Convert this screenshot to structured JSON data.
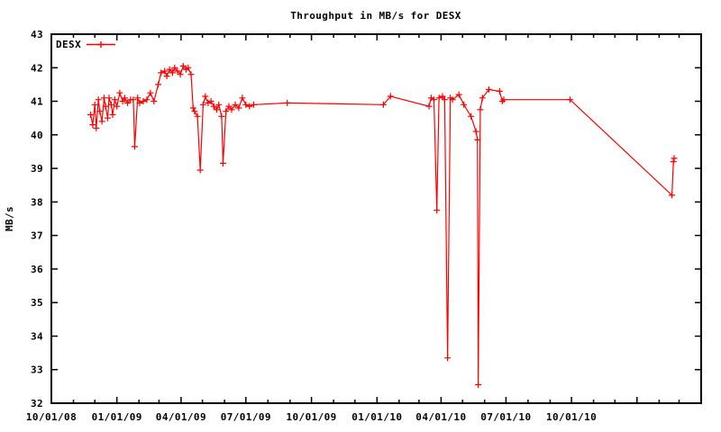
{
  "title": "Throughput in MB/s for DESX",
  "legend": {
    "label": "DESX",
    "position": "top-left-inside"
  },
  "colors": {
    "series": "#ff0000",
    "axis": "#000000",
    "background": "#ffffff"
  },
  "chart_data": {
    "type": "line",
    "marker": "plus",
    "title": "Throughput in MB/s for DESX",
    "xlabel": "",
    "ylabel": "MB/s",
    "grid": false,
    "legend_position": "top-left inside",
    "x_axis": {
      "min": "2008-10-01",
      "max": "2011-04-01",
      "minor_tick_interval_months": 1,
      "major_ticks": [
        {
          "date": "2008-10-01",
          "label": "10/01/08"
        },
        {
          "date": "2009-01-01",
          "label": "01/01/09"
        },
        {
          "date": "2009-04-01",
          "label": "04/01/09"
        },
        {
          "date": "2009-07-01",
          "label": "07/01/09"
        },
        {
          "date": "2009-10-01",
          "label": "10/01/09"
        },
        {
          "date": "2010-01-01",
          "label": "01/01/10"
        },
        {
          "date": "2010-04-01",
          "label": "04/01/10"
        },
        {
          "date": "2010-07-01",
          "label": "07/01/10"
        },
        {
          "date": "2010-10-01",
          "label": "10/01/10"
        },
        {
          "date": "2011-01-01",
          "label": ""
        }
      ]
    },
    "y_axis": {
      "min": 32,
      "max": 43,
      "tick_step": 1,
      "ticks": [
        32,
        33,
        34,
        35,
        36,
        37,
        38,
        39,
        40,
        41,
        42,
        43
      ]
    },
    "series": [
      {
        "name": "DESX",
        "color": "#ff0000",
        "points": [
          [
            "2008-11-25",
            40.6
          ],
          [
            "2008-11-28",
            40.3
          ],
          [
            "2008-12-01",
            40.9
          ],
          [
            "2008-12-03",
            40.2
          ],
          [
            "2008-12-06",
            41.05
          ],
          [
            "2008-12-08",
            40.7
          ],
          [
            "2008-12-11",
            40.4
          ],
          [
            "2008-12-14",
            41.1
          ],
          [
            "2008-12-16",
            40.85
          ],
          [
            "2008-12-19",
            40.5
          ],
          [
            "2008-12-21",
            41.1
          ],
          [
            "2008-12-24",
            40.9
          ],
          [
            "2008-12-26",
            40.6
          ],
          [
            "2008-12-29",
            41.05
          ],
          [
            "2009-01-01",
            40.85
          ],
          [
            "2009-01-05",
            41.25
          ],
          [
            "2009-01-09",
            41.0
          ],
          [
            "2009-01-12",
            41.1
          ],
          [
            "2009-01-16",
            40.95
          ],
          [
            "2009-01-20",
            41.05
          ],
          [
            "2009-01-24",
            41.05
          ],
          [
            "2009-01-26",
            39.65
          ],
          [
            "2009-01-30",
            41.1
          ],
          [
            "2009-02-02",
            40.95
          ],
          [
            "2009-02-07",
            41.0
          ],
          [
            "2009-02-12",
            41.05
          ],
          [
            "2009-02-17",
            41.25
          ],
          [
            "2009-02-22",
            41.0
          ],
          [
            "2009-02-28",
            41.5
          ],
          [
            "2009-03-04",
            41.85
          ],
          [
            "2009-03-09",
            41.9
          ],
          [
            "2009-03-12",
            41.75
          ],
          [
            "2009-03-16",
            41.95
          ],
          [
            "2009-03-20",
            41.85
          ],
          [
            "2009-03-23",
            42.0
          ],
          [
            "2009-03-27",
            41.9
          ],
          [
            "2009-03-31",
            41.8
          ],
          [
            "2009-04-04",
            42.05
          ],
          [
            "2009-04-08",
            41.95
          ],
          [
            "2009-04-11",
            42.0
          ],
          [
            "2009-04-15",
            41.8
          ],
          [
            "2009-04-18",
            40.8
          ],
          [
            "2009-04-20",
            40.7
          ],
          [
            "2009-04-24",
            40.55
          ],
          [
            "2009-04-28",
            38.95
          ],
          [
            "2009-05-02",
            40.9
          ],
          [
            "2009-05-05",
            41.15
          ],
          [
            "2009-05-09",
            40.95
          ],
          [
            "2009-05-13",
            41.0
          ],
          [
            "2009-05-17",
            40.85
          ],
          [
            "2009-05-21",
            40.75
          ],
          [
            "2009-05-24",
            40.9
          ],
          [
            "2009-05-28",
            40.55
          ],
          [
            "2009-05-30",
            39.15
          ],
          [
            "2009-06-03",
            40.7
          ],
          [
            "2009-06-07",
            40.85
          ],
          [
            "2009-06-11",
            40.75
          ],
          [
            "2009-06-16",
            40.9
          ],
          [
            "2009-06-21",
            40.8
          ],
          [
            "2009-06-26",
            41.1
          ],
          [
            "2009-07-01",
            40.9
          ],
          [
            "2009-07-06",
            40.85
          ],
          [
            "2009-07-12",
            40.9
          ],
          [
            "2009-08-28",
            40.95
          ],
          [
            "2010-01-10",
            40.9
          ],
          [
            "2010-01-20",
            41.15
          ],
          [
            "2010-03-15",
            40.85
          ],
          [
            "2010-03-18",
            41.1
          ],
          [
            "2010-03-22",
            41.05
          ],
          [
            "2010-03-26",
            37.75
          ],
          [
            "2010-03-29",
            41.1
          ],
          [
            "2010-04-03",
            41.15
          ],
          [
            "2010-04-06",
            41.05
          ],
          [
            "2010-04-10",
            33.35
          ],
          [
            "2010-04-14",
            41.1
          ],
          [
            "2010-04-17",
            41.05
          ],
          [
            "2010-04-26",
            41.2
          ],
          [
            "2010-05-03",
            40.9
          ],
          [
            "2010-05-13",
            40.55
          ],
          [
            "2010-05-20",
            40.1
          ],
          [
            "2010-05-22",
            39.85
          ],
          [
            "2010-05-23",
            32.55
          ],
          [
            "2010-05-26",
            40.75
          ],
          [
            "2010-05-29",
            41.1
          ],
          [
            "2010-06-07",
            41.35
          ],
          [
            "2010-06-22",
            41.3
          ],
          [
            "2010-06-26",
            41.0
          ],
          [
            "2010-06-28",
            41.05
          ],
          [
            "2010-09-29",
            41.05
          ],
          [
            "2011-02-19",
            38.2
          ],
          [
            "2011-02-21",
            39.2
          ],
          [
            "2011-02-22",
            39.3
          ]
        ]
      }
    ]
  }
}
